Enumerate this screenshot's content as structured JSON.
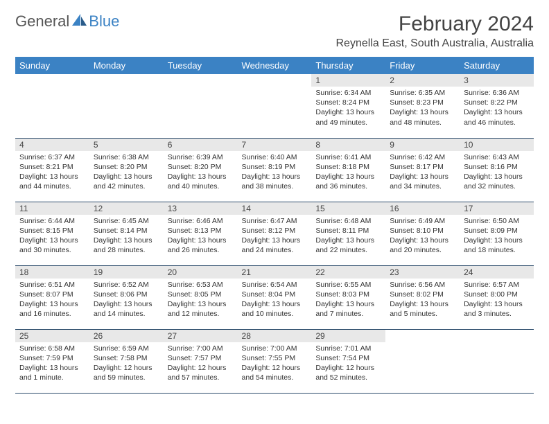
{
  "logo": {
    "text1": "General",
    "text2": "Blue"
  },
  "title": "February 2024",
  "location": "Reynella East, South Australia, Australia",
  "colors": {
    "header_bg": "#3b82c4",
    "header_fg": "#ffffff",
    "daynum_bg": "#e8e8e8",
    "cell_border": "#2a4a6a",
    "text": "#333333"
  },
  "weekdays": [
    "Sunday",
    "Monday",
    "Tuesday",
    "Wednesday",
    "Thursday",
    "Friday",
    "Saturday"
  ],
  "weeks": [
    [
      null,
      null,
      null,
      null,
      {
        "n": "1",
        "sr": "Sunrise: 6:34 AM",
        "ss": "Sunset: 8:24 PM",
        "dl": "Daylight: 13 hours and 49 minutes."
      },
      {
        "n": "2",
        "sr": "Sunrise: 6:35 AM",
        "ss": "Sunset: 8:23 PM",
        "dl": "Daylight: 13 hours and 48 minutes."
      },
      {
        "n": "3",
        "sr": "Sunrise: 6:36 AM",
        "ss": "Sunset: 8:22 PM",
        "dl": "Daylight: 13 hours and 46 minutes."
      }
    ],
    [
      {
        "n": "4",
        "sr": "Sunrise: 6:37 AM",
        "ss": "Sunset: 8:21 PM",
        "dl": "Daylight: 13 hours and 44 minutes."
      },
      {
        "n": "5",
        "sr": "Sunrise: 6:38 AM",
        "ss": "Sunset: 8:20 PM",
        "dl": "Daylight: 13 hours and 42 minutes."
      },
      {
        "n": "6",
        "sr": "Sunrise: 6:39 AM",
        "ss": "Sunset: 8:20 PM",
        "dl": "Daylight: 13 hours and 40 minutes."
      },
      {
        "n": "7",
        "sr": "Sunrise: 6:40 AM",
        "ss": "Sunset: 8:19 PM",
        "dl": "Daylight: 13 hours and 38 minutes."
      },
      {
        "n": "8",
        "sr": "Sunrise: 6:41 AM",
        "ss": "Sunset: 8:18 PM",
        "dl": "Daylight: 13 hours and 36 minutes."
      },
      {
        "n": "9",
        "sr": "Sunrise: 6:42 AM",
        "ss": "Sunset: 8:17 PM",
        "dl": "Daylight: 13 hours and 34 minutes."
      },
      {
        "n": "10",
        "sr": "Sunrise: 6:43 AM",
        "ss": "Sunset: 8:16 PM",
        "dl": "Daylight: 13 hours and 32 minutes."
      }
    ],
    [
      {
        "n": "11",
        "sr": "Sunrise: 6:44 AM",
        "ss": "Sunset: 8:15 PM",
        "dl": "Daylight: 13 hours and 30 minutes."
      },
      {
        "n": "12",
        "sr": "Sunrise: 6:45 AM",
        "ss": "Sunset: 8:14 PM",
        "dl": "Daylight: 13 hours and 28 minutes."
      },
      {
        "n": "13",
        "sr": "Sunrise: 6:46 AM",
        "ss": "Sunset: 8:13 PM",
        "dl": "Daylight: 13 hours and 26 minutes."
      },
      {
        "n": "14",
        "sr": "Sunrise: 6:47 AM",
        "ss": "Sunset: 8:12 PM",
        "dl": "Daylight: 13 hours and 24 minutes."
      },
      {
        "n": "15",
        "sr": "Sunrise: 6:48 AM",
        "ss": "Sunset: 8:11 PM",
        "dl": "Daylight: 13 hours and 22 minutes."
      },
      {
        "n": "16",
        "sr": "Sunrise: 6:49 AM",
        "ss": "Sunset: 8:10 PM",
        "dl": "Daylight: 13 hours and 20 minutes."
      },
      {
        "n": "17",
        "sr": "Sunrise: 6:50 AM",
        "ss": "Sunset: 8:09 PM",
        "dl": "Daylight: 13 hours and 18 minutes."
      }
    ],
    [
      {
        "n": "18",
        "sr": "Sunrise: 6:51 AM",
        "ss": "Sunset: 8:07 PM",
        "dl": "Daylight: 13 hours and 16 minutes."
      },
      {
        "n": "19",
        "sr": "Sunrise: 6:52 AM",
        "ss": "Sunset: 8:06 PM",
        "dl": "Daylight: 13 hours and 14 minutes."
      },
      {
        "n": "20",
        "sr": "Sunrise: 6:53 AM",
        "ss": "Sunset: 8:05 PM",
        "dl": "Daylight: 13 hours and 12 minutes."
      },
      {
        "n": "21",
        "sr": "Sunrise: 6:54 AM",
        "ss": "Sunset: 8:04 PM",
        "dl": "Daylight: 13 hours and 10 minutes."
      },
      {
        "n": "22",
        "sr": "Sunrise: 6:55 AM",
        "ss": "Sunset: 8:03 PM",
        "dl": "Daylight: 13 hours and 7 minutes."
      },
      {
        "n": "23",
        "sr": "Sunrise: 6:56 AM",
        "ss": "Sunset: 8:02 PM",
        "dl": "Daylight: 13 hours and 5 minutes."
      },
      {
        "n": "24",
        "sr": "Sunrise: 6:57 AM",
        "ss": "Sunset: 8:00 PM",
        "dl": "Daylight: 13 hours and 3 minutes."
      }
    ],
    [
      {
        "n": "25",
        "sr": "Sunrise: 6:58 AM",
        "ss": "Sunset: 7:59 PM",
        "dl": "Daylight: 13 hours and 1 minute."
      },
      {
        "n": "26",
        "sr": "Sunrise: 6:59 AM",
        "ss": "Sunset: 7:58 PM",
        "dl": "Daylight: 12 hours and 59 minutes."
      },
      {
        "n": "27",
        "sr": "Sunrise: 7:00 AM",
        "ss": "Sunset: 7:57 PM",
        "dl": "Daylight: 12 hours and 57 minutes."
      },
      {
        "n": "28",
        "sr": "Sunrise: 7:00 AM",
        "ss": "Sunset: 7:55 PM",
        "dl": "Daylight: 12 hours and 54 minutes."
      },
      {
        "n": "29",
        "sr": "Sunrise: 7:01 AM",
        "ss": "Sunset: 7:54 PM",
        "dl": "Daylight: 12 hours and 52 minutes."
      },
      null,
      null
    ]
  ]
}
